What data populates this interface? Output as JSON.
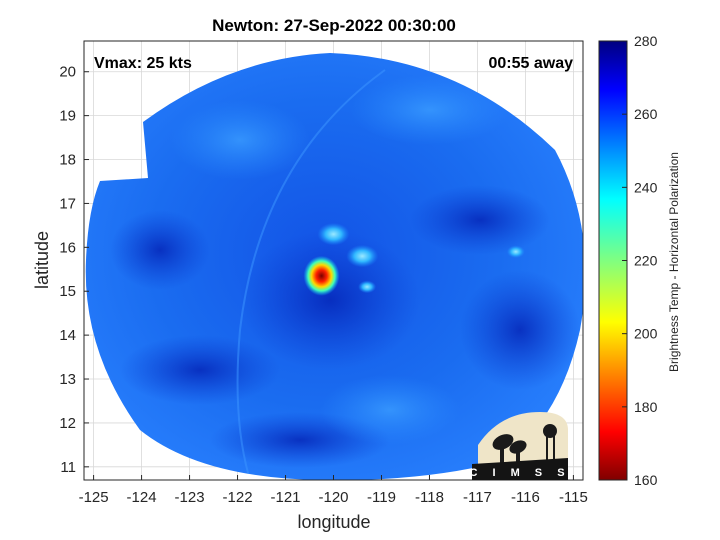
{
  "title": "Newton: 27-Sep-2022 00:30:00",
  "annotations": {
    "vmax": "Vmax: 25 kts",
    "time_away": "00:55 away"
  },
  "axes": {
    "xlabel": "longitude",
    "ylabel": "latitude",
    "xlim": [
      -125.2,
      -114.8
    ],
    "ylim": [
      10.7,
      20.7
    ],
    "xticks": [
      -125,
      -124,
      -123,
      -122,
      -121,
      -120,
      -119,
      -118,
      -117,
      -116,
      -115
    ],
    "yticks": [
      11,
      12,
      13,
      14,
      15,
      16,
      17,
      18,
      19,
      20
    ],
    "grid": true
  },
  "colorbar": {
    "label": "Brightness Temp - Horizontal Polarization",
    "min": 160,
    "max": 280,
    "ticks": [
      160,
      180,
      200,
      220,
      240,
      260,
      280
    ],
    "colormap": "jet"
  },
  "logo": {
    "text": "CIMSS"
  },
  "map_data": {
    "swath_center": {
      "lon": -120.2,
      "lat": 15.7
    },
    "background_temp_k": 255,
    "features": [
      {
        "type": "warm-core",
        "lon": -120.25,
        "lat": 15.35,
        "temp_k": 170
      },
      {
        "type": "convective-band",
        "lon": -120.0,
        "lat": 16.3,
        "temp_k": 238
      },
      {
        "type": "convective-band",
        "lon": -119.4,
        "lat": 15.8,
        "temp_k": 242
      },
      {
        "type": "convective-band",
        "lon": -119.3,
        "lat": 15.1,
        "temp_k": 245
      },
      {
        "type": "convective-band",
        "lon": -116.2,
        "lat": 15.9,
        "temp_k": 250
      }
    ]
  },
  "colors": {
    "swath_base": "#1a6cf0",
    "swath_dark": "#0a3ad0",
    "swath_light": "#2f8cff",
    "logo_bg": "#efe5c8"
  }
}
